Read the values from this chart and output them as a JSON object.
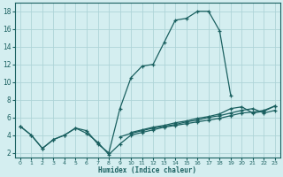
{
  "background_color": "#d4eef0",
  "grid_color": "#aed4d8",
  "line_color": "#1a6060",
  "xlim": [
    -0.5,
    23.5
  ],
  "ylim": [
    1.5,
    19
  ],
  "xticks": [
    0,
    1,
    2,
    3,
    4,
    5,
    6,
    7,
    8,
    9,
    10,
    11,
    12,
    13,
    14,
    15,
    16,
    17,
    18,
    19,
    20,
    21,
    22,
    23
  ],
  "yticks": [
    2,
    4,
    6,
    8,
    10,
    12,
    14,
    16,
    18
  ],
  "xlabel": "Humidex (Indice chaleur)",
  "series": [
    {
      "x": [
        0,
        1,
        2,
        3,
        4,
        5,
        6,
        7,
        8,
        9,
        10,
        11,
        12,
        13,
        14,
        15,
        16,
        17,
        18,
        19
      ],
      "y": [
        5.0,
        4.0,
        2.5,
        3.5,
        4.0,
        4.8,
        4.5,
        3.0,
        2.0,
        7.0,
        10.5,
        11.8,
        12.0,
        14.5,
        17.0,
        17.2,
        18.0,
        18.0,
        15.8,
        8.5
      ]
    },
    {
      "x": [
        0,
        1,
        2,
        3,
        4,
        5,
        6,
        7,
        8,
        9,
        10,
        11,
        12,
        13,
        14,
        15,
        16,
        17,
        18,
        19,
        20,
        21,
        22,
        23
      ],
      "y": [
        5.0,
        4.0,
        2.5,
        3.5,
        4.0,
        4.8,
        4.2,
        3.2,
        1.8,
        3.0,
        4.0,
        4.3,
        4.6,
        4.9,
        5.1,
        5.3,
        5.5,
        5.7,
        5.9,
        6.2,
        6.5,
        6.6,
        6.8,
        7.3
      ]
    },
    {
      "x": [
        9,
        10,
        11,
        12,
        13,
        14,
        15,
        16,
        17,
        18,
        19,
        20,
        21,
        22,
        23
      ],
      "y": [
        3.8,
        4.2,
        4.5,
        4.8,
        5.0,
        5.2,
        5.5,
        5.7,
        6.0,
        6.2,
        6.5,
        6.8,
        7.0,
        6.5,
        6.8
      ]
    },
    {
      "x": [
        10,
        11,
        12,
        13,
        14,
        15,
        16,
        17,
        18,
        19,
        20,
        21,
        22,
        23
      ],
      "y": [
        4.3,
        4.6,
        4.9,
        5.1,
        5.4,
        5.6,
        5.9,
        6.1,
        6.4,
        7.0,
        7.2,
        6.5,
        6.7,
        7.3
      ]
    }
  ]
}
